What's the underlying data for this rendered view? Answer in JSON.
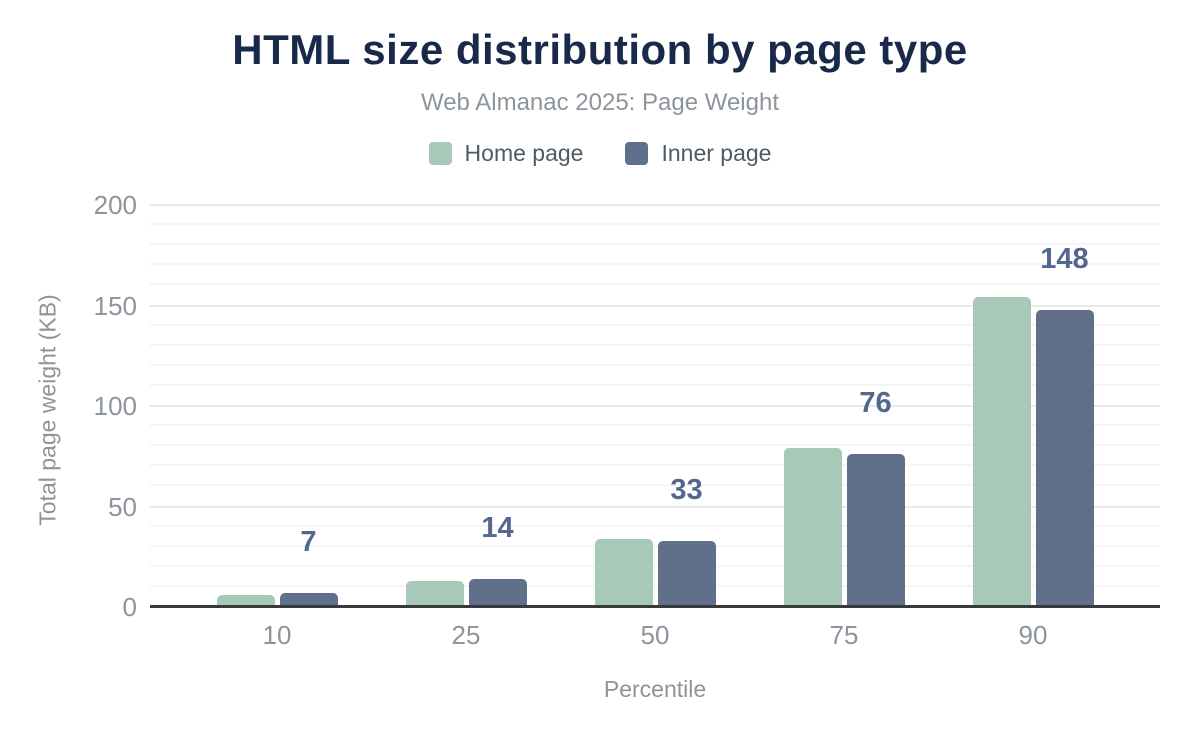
{
  "chart_data": {
    "type": "bar",
    "title": "HTML size distribution by page type",
    "subtitle": "Web Almanac 2025: Page Weight",
    "xlabel": "Percentile",
    "ylabel": "Total page weight (KB)",
    "categories": [
      "10",
      "25",
      "50",
      "75",
      "90"
    ],
    "series": [
      {
        "name": "Home page",
        "color": "#a9c9b8",
        "values": [
          6,
          13,
          34,
          79,
          154
        ]
      },
      {
        "name": "Inner page",
        "color": "#60708a",
        "values": [
          7,
          14,
          33,
          76,
          148
        ]
      }
    ],
    "data_labels": {
      "on_series": "Inner page",
      "values": [
        "7",
        "14",
        "33",
        "76",
        "148"
      ],
      "color": "#54688f"
    },
    "ylim": [
      0,
      200
    ],
    "yticks": [
      0,
      50,
      100,
      150,
      200
    ],
    "minor_grid_step": 10,
    "grid": "on",
    "legend_position": "top"
  },
  "colors": {
    "background": "#ffffff",
    "title": "#19294a",
    "subtitle": "#8d949b",
    "tick_label": "#8d949b",
    "axis_title": "#8d949b",
    "legend_text": "#4f5a66",
    "axis_line": "#37393c",
    "grid_major": "#e7e9ea",
    "grid_minor": "#f4f5f6",
    "data_label": "#54688f"
  }
}
